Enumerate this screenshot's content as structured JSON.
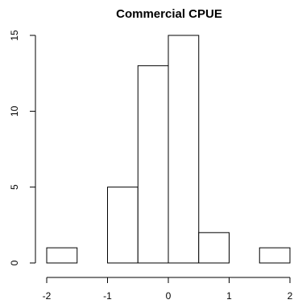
{
  "chart_data": {
    "type": "bar",
    "title": "Commercial CPUE",
    "xlabel": "",
    "ylabel": "",
    "bin_edges": [
      -2,
      -1.5,
      -1,
      -0.5,
      0,
      0.5,
      1,
      1.5,
      2
    ],
    "values": [
      1,
      0,
      5,
      13,
      15,
      2,
      0,
      1
    ],
    "xlim": [
      -2,
      2
    ],
    "ylim": [
      0,
      15
    ],
    "x_ticks": [
      -2,
      -1,
      0,
      1,
      2
    ],
    "x_tick_labels": [
      "-2",
      "-1",
      "0",
      "1",
      "2"
    ],
    "y_ticks": [
      0,
      5,
      10,
      15
    ],
    "y_tick_labels": [
      "0",
      "5",
      "10",
      "15"
    ],
    "grid": false,
    "colors": {
      "bar_fill": "#ffffff",
      "bar_stroke": "#000000"
    }
  }
}
